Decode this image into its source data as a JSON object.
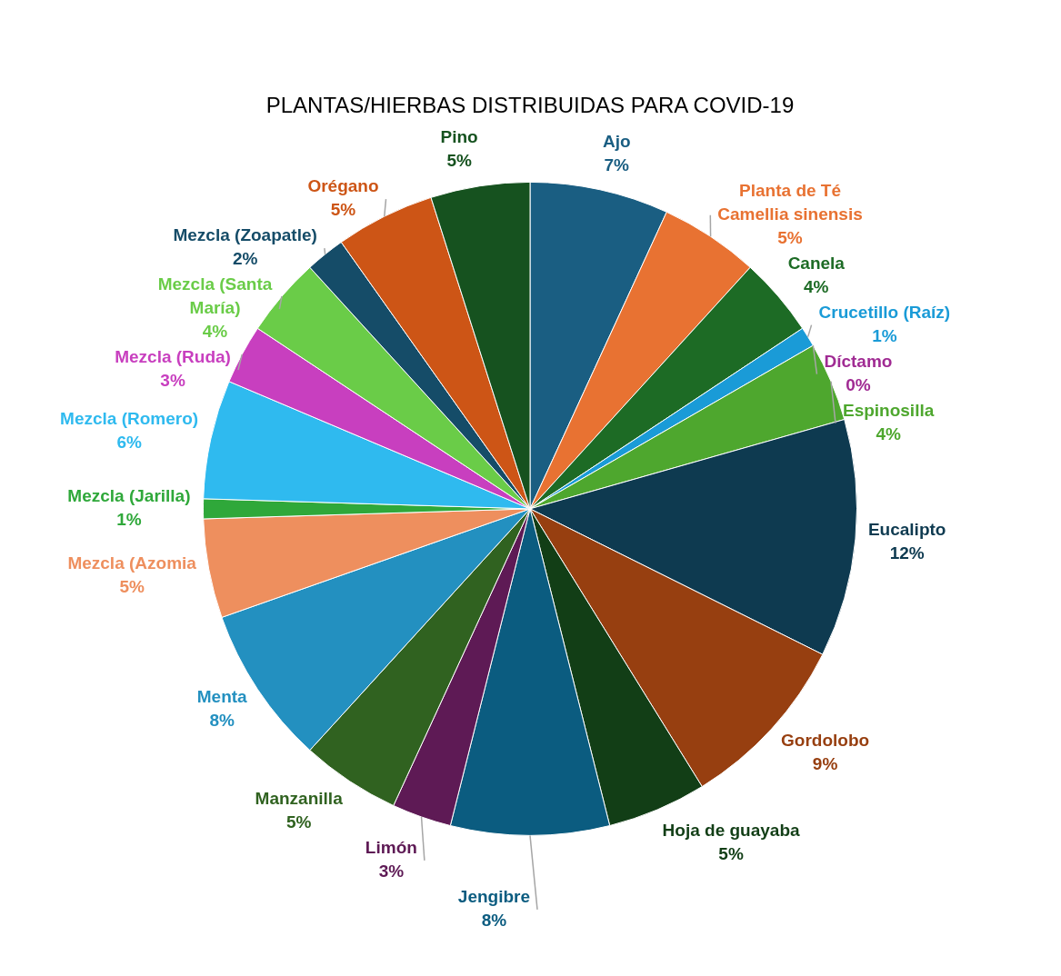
{
  "chart_data": {
    "type": "pie",
    "title": "PLANTAS/HIERBAS DISTRIBUIDAS PARA COVID-19",
    "categories": [
      "Ajo",
      "Planta de Té Camellia sinensis",
      "Canela",
      "Crucetillo (Raíz)",
      "Díctamo",
      "Espinosilla",
      "Eucalipto",
      "Gordolobo",
      "Hoja de guayaba",
      "Jengibre",
      "Limón",
      "Manzanilla",
      "Menta",
      "Mezcla (Azomia",
      "Mezcla (Jarilla)",
      "Mezcla (Romero)",
      "Mezcla (Ruda)",
      "Mezcla (Santa María)",
      "Mezcla (Zoapatle)",
      "Orégano",
      "Pino"
    ],
    "values": [
      7,
      5,
      4,
      1,
      0,
      4,
      12,
      9,
      5,
      8,
      3,
      5,
      8,
      5,
      1,
      6,
      3,
      4,
      2,
      5,
      5
    ],
    "colors": [
      "#1a5e82",
      "#e87232",
      "#1d6b25",
      "#1a9bd7",
      "#a02b93",
      "#4ea72e",
      "#0e3a50",
      "#973f10",
      "#123e16",
      "#0b5c80",
      "#5e1a55",
      "#306220",
      "#2390c0",
      "#ee8f5e",
      "#2fa83a",
      "#2fbaef",
      "#c83fbf",
      "#6acc48",
      "#154c68",
      "#cd5516",
      "#16521f"
    ],
    "value_labels": [
      "7%",
      "5%",
      "4%",
      "1%",
      "0%",
      "4%",
      "12%",
      "9%",
      "5%",
      "8%",
      "3%",
      "5%",
      "8%",
      "5%",
      "1%",
      "6%",
      "3%",
      "4%",
      "2%",
      "5%",
      "5%"
    ]
  }
}
